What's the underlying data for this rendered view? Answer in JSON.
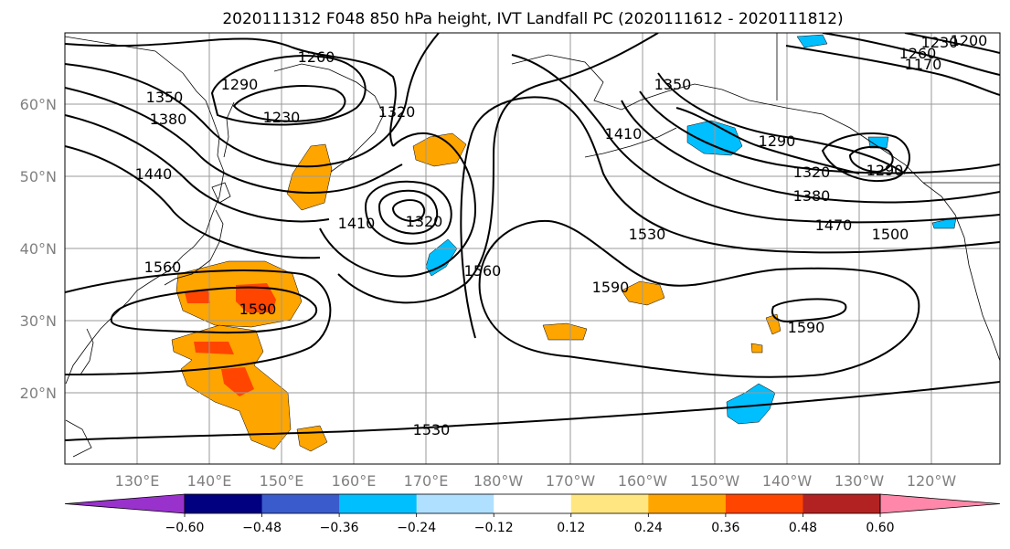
{
  "figure": {
    "title": "2020111312 F048 850 hPa height, IVT Landfall PC (2020111612 - 2020111812)"
  },
  "map": {
    "lon_ticks": [
      "130°E",
      "140°E",
      "150°E",
      "160°E",
      "170°E",
      "180°W",
      "170°W",
      "160°W",
      "150°W",
      "140°W",
      "130°W",
      "120°W"
    ],
    "lat_ticks": [
      "60°N",
      "50°N",
      "40°N",
      "30°N",
      "20°N"
    ],
    "contour_labels": [
      "1260",
      "1290",
      "1230",
      "1350",
      "1380",
      "1440",
      "1320",
      "1410",
      "1320",
      "1560",
      "1590",
      "1560",
      "1530",
      "1590",
      "1410",
      "1350",
      "1290",
      "1320",
      "1380",
      "1470",
      "1500",
      "1260",
      "1230",
      "1590",
      "1530",
      "1290",
      "1200",
      "1170"
    ]
  },
  "colorbar": {
    "ticks": [
      "−0.60",
      "−0.48",
      "−0.36",
      "−0.24",
      "−0.12",
      "0.12",
      "0.24",
      "0.36",
      "0.48",
      "0.60"
    ],
    "colors": [
      "#9932cc",
      "#000080",
      "#3a5bcc",
      "#00bfff",
      "#b0e0ff",
      "#ffffff",
      "#ffe680",
      "#ffa500",
      "#ff4500",
      "#b22222",
      "#ff88aa"
    ]
  }
}
